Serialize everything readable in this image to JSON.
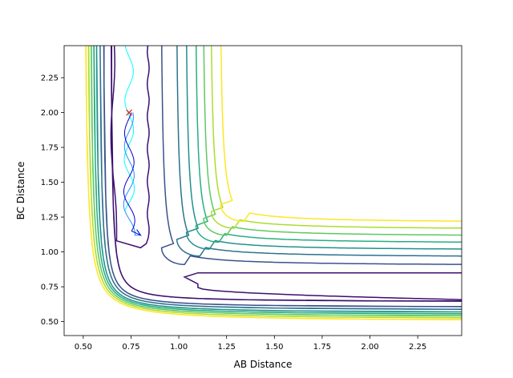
{
  "chart_data": {
    "type": "contour",
    "title": "",
    "xlabel": "AB Distance",
    "ylabel": "BC Distance",
    "xlim": [
      0.4,
      2.48
    ],
    "ylim": [
      0.4,
      2.48
    ],
    "x_ticks": [
      0.5,
      0.75,
      1.0,
      1.25,
      1.5,
      1.75,
      2.0,
      2.25
    ],
    "x_tick_labels": [
      "0.50",
      "0.75",
      "1.00",
      "1.25",
      "1.50",
      "1.75",
      "2.00",
      "2.25"
    ],
    "y_ticks": [
      0.5,
      0.75,
      1.0,
      1.25,
      1.5,
      1.75,
      2.0,
      2.25
    ],
    "y_tick_labels": [
      "0.50",
      "0.75",
      "1.00",
      "1.25",
      "1.50",
      "1.75",
      "2.00",
      "2.25"
    ],
    "colormap": "viridis",
    "contours": [
      {
        "color": "#3b0f70",
        "min_x": 0.64,
        "min_y": 0.64,
        "wall_x": 0.64,
        "wall_y": 0.64
      },
      {
        "color": "#3b528b",
        "min_x": 0.6,
        "min_y": 0.6,
        "wall_x": 0.6,
        "wall_y": 0.6
      },
      {
        "color": "#2c728e",
        "min_x": 0.58,
        "min_y": 0.58,
        "wall_x": 0.58,
        "wall_y": 0.58
      },
      {
        "color": "#21918c",
        "min_x": 0.56,
        "min_y": 0.56,
        "wall_x": 0.56,
        "wall_y": 0.56
      },
      {
        "color": "#28ae80",
        "min_x": 0.545,
        "min_y": 0.545,
        "wall_x": 0.545,
        "wall_y": 0.545
      },
      {
        "color": "#5ec962",
        "min_x": 0.53,
        "min_y": 0.53,
        "wall_x": 0.53,
        "wall_y": 0.53
      },
      {
        "color": "#addc30",
        "min_x": 0.515,
        "min_y": 0.515,
        "wall_x": 0.515,
        "wall_y": 0.515
      },
      {
        "color": "#fde725",
        "min_x": 0.5,
        "min_y": 0.5,
        "wall_x": 0.5,
        "wall_y": 0.5
      }
    ],
    "corner_contours": [
      {
        "color": "#3b528b",
        "x_wall": 0.91,
        "y_wall": 0.91,
        "corner_x": 0.91,
        "corner_y": 0.91
      },
      {
        "color": "#2c728e",
        "x_wall": 0.99,
        "y_wall": 0.97,
        "corner_x": 0.99,
        "corner_y": 0.97
      },
      {
        "color": "#21918c",
        "x_wall": 1.04,
        "y_wall": 1.02,
        "corner_x": 1.04,
        "corner_y": 1.02
      },
      {
        "color": "#28ae80",
        "x_wall": 1.09,
        "y_wall": 1.07,
        "corner_x": 1.09,
        "corner_y": 1.07
      },
      {
        "color": "#5ec962",
        "x_wall": 1.13,
        "y_wall": 1.12,
        "corner_x": 1.13,
        "corner_y": 1.12
      },
      {
        "color": "#addc30",
        "x_wall": 1.17,
        "y_wall": 1.17,
        "corner_x": 1.17,
        "corner_y": 1.17
      },
      {
        "color": "#fde725",
        "x_wall": 1.22,
        "y_wall": 1.22,
        "corner_x": 1.22,
        "corner_y": 1.22
      }
    ],
    "valley_contours": [
      {
        "color": "#3b0f70",
        "orientation": "vertical",
        "inner": 0.84,
        "tip": 1.03
      },
      {
        "color": "#3b0f70",
        "orientation": "horizontal",
        "inner": 0.85,
        "tip": 1.03
      }
    ],
    "trajectory": {
      "start": {
        "x": 0.74,
        "y": 2.0,
        "marker": "x",
        "color": "#e41a1c"
      },
      "colors": [
        "#00ffff",
        "#1e90ff",
        "#0000cd"
      ]
    }
  }
}
